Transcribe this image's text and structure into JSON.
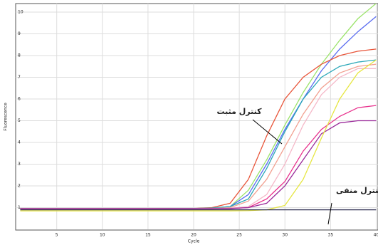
{
  "chart_data": {
    "type": "line",
    "x_label": "Cycle",
    "y_label": "Fluorescence",
    "x": [
      1,
      5,
      10,
      15,
      20,
      22,
      24,
      26,
      28,
      30,
      32,
      34,
      36,
      38,
      40
    ],
    "series": [
      {
        "color": "#9be36a",
        "values": [
          0.95,
          0.95,
          0.95,
          0.95,
          0.96,
          0.98,
          1.05,
          1.8,
          3.2,
          4.8,
          6.3,
          7.6,
          8.7,
          9.7,
          10.4
        ]
      },
      {
        "color": "#5a6cf0",
        "values": [
          0.95,
          0.95,
          0.95,
          0.95,
          0.96,
          0.98,
          1.05,
          1.6,
          3.0,
          4.6,
          6.0,
          7.3,
          8.3,
          9.1,
          9.8
        ]
      },
      {
        "color": "#e8553a",
        "values": [
          0.95,
          0.95,
          0.95,
          0.95,
          0.96,
          1.0,
          1.2,
          2.3,
          4.3,
          6.0,
          7.0,
          7.6,
          8.0,
          8.2,
          8.3
        ]
      },
      {
        "color": "#2aa7b8",
        "values": [
          0.95,
          0.95,
          0.95,
          0.95,
          0.96,
          0.98,
          1.05,
          1.4,
          2.8,
          4.5,
          6.0,
          7.0,
          7.5,
          7.7,
          7.8
        ]
      },
      {
        "color": "#f2a090",
        "values": [
          0.95,
          0.95,
          0.95,
          0.95,
          0.95,
          0.96,
          1.0,
          1.3,
          2.3,
          3.8,
          5.3,
          6.5,
          7.2,
          7.5,
          7.6
        ]
      },
      {
        "color": "#f5b8c8",
        "values": [
          0.95,
          0.95,
          0.95,
          0.95,
          0.95,
          0.95,
          0.97,
          1.05,
          1.6,
          3.0,
          4.8,
          6.2,
          7.0,
          7.4,
          7.4
        ]
      },
      {
        "color": "#e8308c",
        "values": [
          0.95,
          0.95,
          0.95,
          0.95,
          0.95,
          0.95,
          0.96,
          1.0,
          1.4,
          2.2,
          3.6,
          4.6,
          5.2,
          5.6,
          5.7
        ]
      },
      {
        "color": "#9a2a9a",
        "values": [
          0.95,
          0.95,
          0.95,
          0.95,
          0.95,
          0.95,
          0.96,
          1.0,
          1.2,
          2.0,
          3.2,
          4.4,
          4.9,
          5.0,
          5.0
        ]
      },
      {
        "color": "#e6e640",
        "values": [
          0.85,
          0.85,
          0.85,
          0.85,
          0.85,
          0.85,
          0.85,
          0.86,
          0.9,
          1.1,
          2.3,
          4.2,
          6.0,
          7.2,
          7.8
        ]
      },
      {
        "color": "#333355",
        "values": [
          0.9,
          0.9,
          0.9,
          0.9,
          0.9,
          0.9,
          0.9,
          0.9,
          0.9,
          0.9,
          0.9,
          0.9,
          0.9,
          0.9,
          0.9
        ]
      }
    ],
    "xlim": [
      0.5,
      40.2
    ],
    "ylim": [
      0,
      10
    ],
    "xticks": [
      5,
      10,
      15,
      20,
      25,
      30,
      35,
      40
    ],
    "yticks": [
      1,
      2,
      3,
      4,
      5,
      6,
      7,
      8,
      9,
      10
    ],
    "grid": true,
    "annotations": [
      "کنترل مثبت",
      "کنترل منفی"
    ]
  }
}
